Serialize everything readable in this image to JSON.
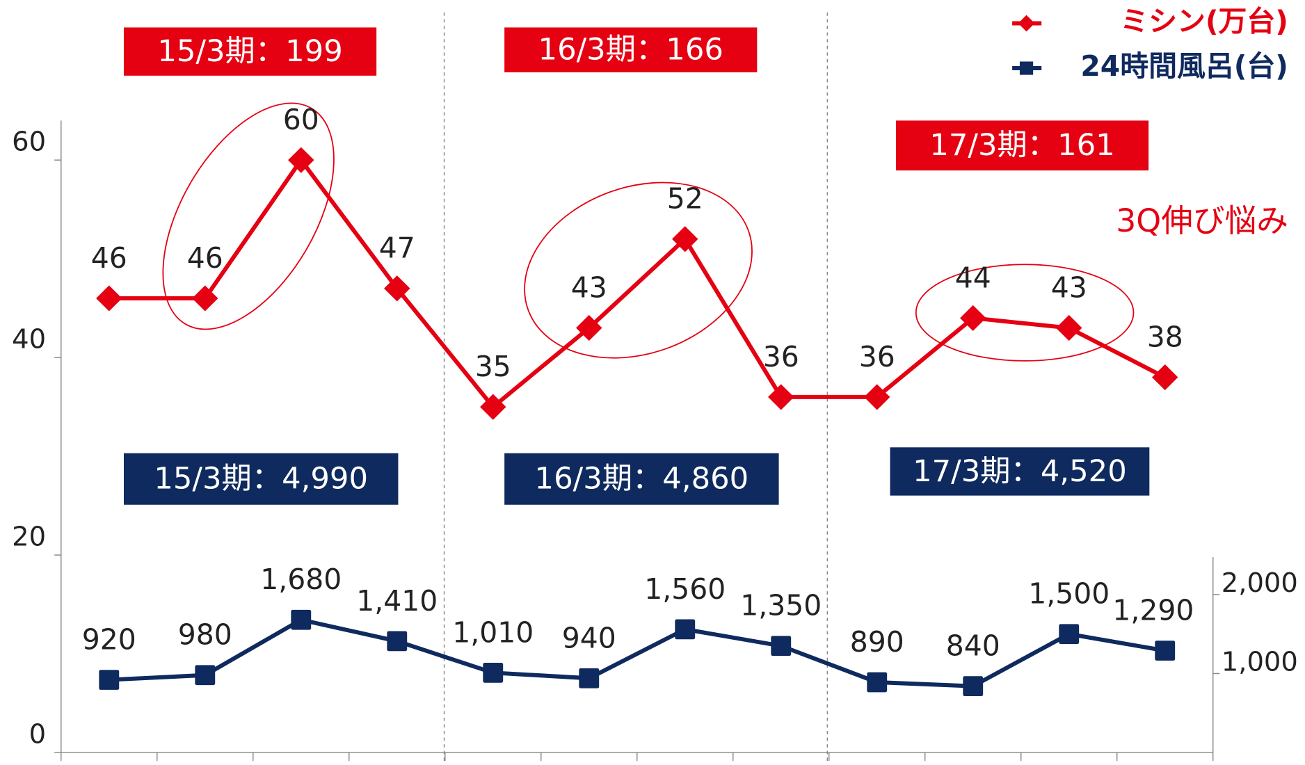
{
  "chart_data": {
    "type": "line",
    "categories": [
      null,
      null,
      null,
      null,
      null,
      null,
      null,
      null,
      null,
      null,
      null,
      null
    ],
    "series": [
      {
        "name": "ミシン(万台)",
        "color": "#e50012",
        "axis": "y",
        "values": [
          46,
          46,
          60,
          47,
          35,
          43,
          52,
          36,
          36,
          44,
          43,
          38
        ]
      },
      {
        "name": "24時間風呂(台)",
        "color": "#0f2a5e",
        "axis": "y2",
        "values": [
          920,
          980,
          1680,
          1410,
          1010,
          940,
          1560,
          1350,
          890,
          840,
          1500,
          1290
        ],
        "value_labels": [
          "920",
          "980",
          "1,680",
          "1,410",
          "1,010",
          "940",
          "1,560",
          "1,350",
          "890",
          "840",
          "1,500",
          "1,290"
        ]
      }
    ],
    "ylim": [
      0,
      64
    ],
    "yticks": [
      0,
      20,
      40,
      60
    ],
    "y2lim": [
      0,
      8000
    ],
    "y2ticks": [
      {
        "value": 1000,
        "label": "1,000"
      },
      {
        "value": 2000,
        "label": "2,000"
      }
    ],
    "legend": "top-right",
    "annotations": [
      "15/3期：199",
      "16/3期：166",
      "17/3期：161",
      "15/3期：4,990",
      "16/3期：4,860",
      "17/3期：4,520",
      "3Q伸び悩み"
    ]
  }
}
